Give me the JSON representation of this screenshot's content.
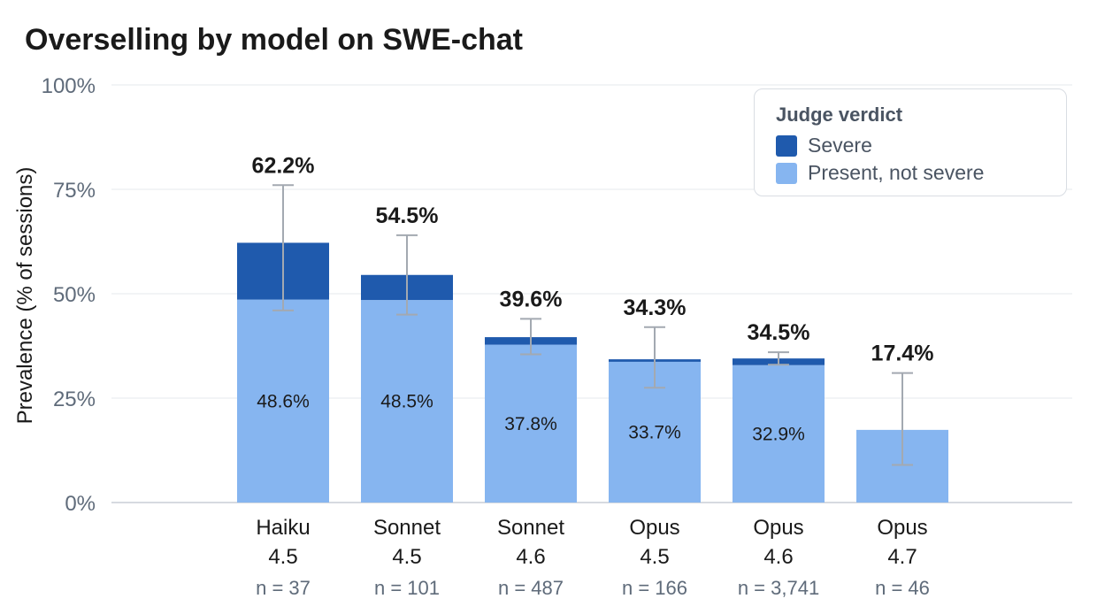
{
  "chart_data": {
    "type": "bar",
    "stacked": true,
    "title": "Overselling by model on SWE-chat",
    "ylabel": "Prevalence (% of sessions)",
    "ylim": [
      0,
      100
    ],
    "yticks": [
      "0%",
      "25%",
      "50%",
      "75%",
      "100%"
    ],
    "ytick_values": [
      0,
      25,
      50,
      75,
      100
    ],
    "grid": true,
    "legend": {
      "title": "Judge verdict",
      "placement": "top-right",
      "items": [
        {
          "label": "Severe",
          "color": "#1f5aad"
        },
        {
          "label": "Present, not severe",
          "color": "#86b5f0"
        }
      ]
    },
    "categories": [
      {
        "line1": "Haiku",
        "line2": "4.5",
        "n": "n = 37"
      },
      {
        "line1": "Sonnet",
        "line2": "4.5",
        "n": "n = 101"
      },
      {
        "line1": "Sonnet",
        "line2": "4.6",
        "n": "n = 487"
      },
      {
        "line1": "Opus",
        "line2": "4.5",
        "n": "n = 166"
      },
      {
        "line1": "Opus",
        "line2": "4.6",
        "n": "n = 3,741"
      },
      {
        "line1": "Opus",
        "line2": "4.7",
        "n": "n = 46"
      }
    ],
    "series": [
      {
        "name": "Present, not severe",
        "color": "#86b5f0",
        "values": [
          48.6,
          48.5,
          37.8,
          33.7,
          32.9,
          17.4
        ],
        "labels": [
          "48.6%",
          "48.5%",
          "37.8%",
          "33.7%",
          "32.9%",
          ""
        ]
      },
      {
        "name": "Severe",
        "color": "#1f5aad",
        "values": [
          13.6,
          6.0,
          1.8,
          0.6,
          1.6,
          0
        ]
      }
    ],
    "totals": [
      62.2,
      54.5,
      39.6,
      34.3,
      34.5,
      17.4
    ],
    "total_labels": [
      "62.2%",
      "54.5%",
      "39.6%",
      "34.3%",
      "34.5%",
      "17.4%"
    ],
    "error_bars": [
      {
        "low": 46.0,
        "high": 76.0
      },
      {
        "low": 45.0,
        "high": 64.0
      },
      {
        "low": 35.5,
        "high": 44.0
      },
      {
        "low": 27.5,
        "high": 42.0
      },
      {
        "low": 33.0,
        "high": 36.0
      },
      {
        "low": 9.0,
        "high": 31.0
      }
    ],
    "error_bar_color": "#a3a9b1"
  }
}
